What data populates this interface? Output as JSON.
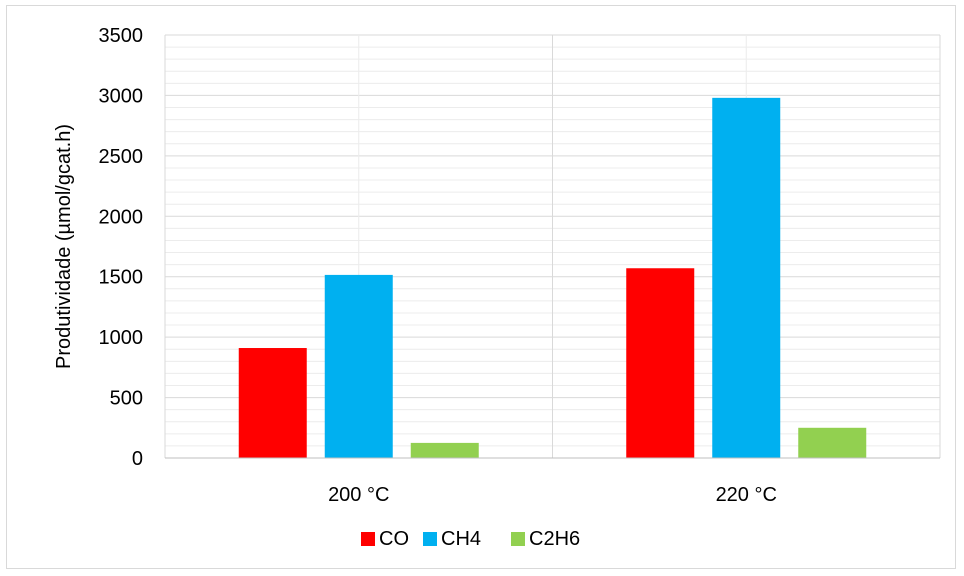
{
  "chart_data": {
    "type": "bar",
    "title": "",
    "xlabel": "",
    "ylabel": "Produtividade (µmol/gcat.h)",
    "categories": [
      "200 °C",
      "220 °C"
    ],
    "series": [
      {
        "name": "CO",
        "color": "#ff0000",
        "values": [
          910,
          1570
        ]
      },
      {
        "name": "CH4",
        "color": "#00b0f0",
        "values": [
          1515,
          2980
        ]
      },
      {
        "name": "C2H6",
        "color": "#92d050",
        "values": [
          125,
          250
        ]
      }
    ],
    "ylim": [
      0,
      3500
    ],
    "yticks": [
      "0",
      "500",
      "1000",
      "1500",
      "2000",
      "2500",
      "3000",
      "3500"
    ],
    "ytick_values": [
      0,
      500,
      1000,
      1500,
      2000,
      2500,
      3000,
      3500
    ],
    "grid": true,
    "legend_position": "bottom"
  }
}
